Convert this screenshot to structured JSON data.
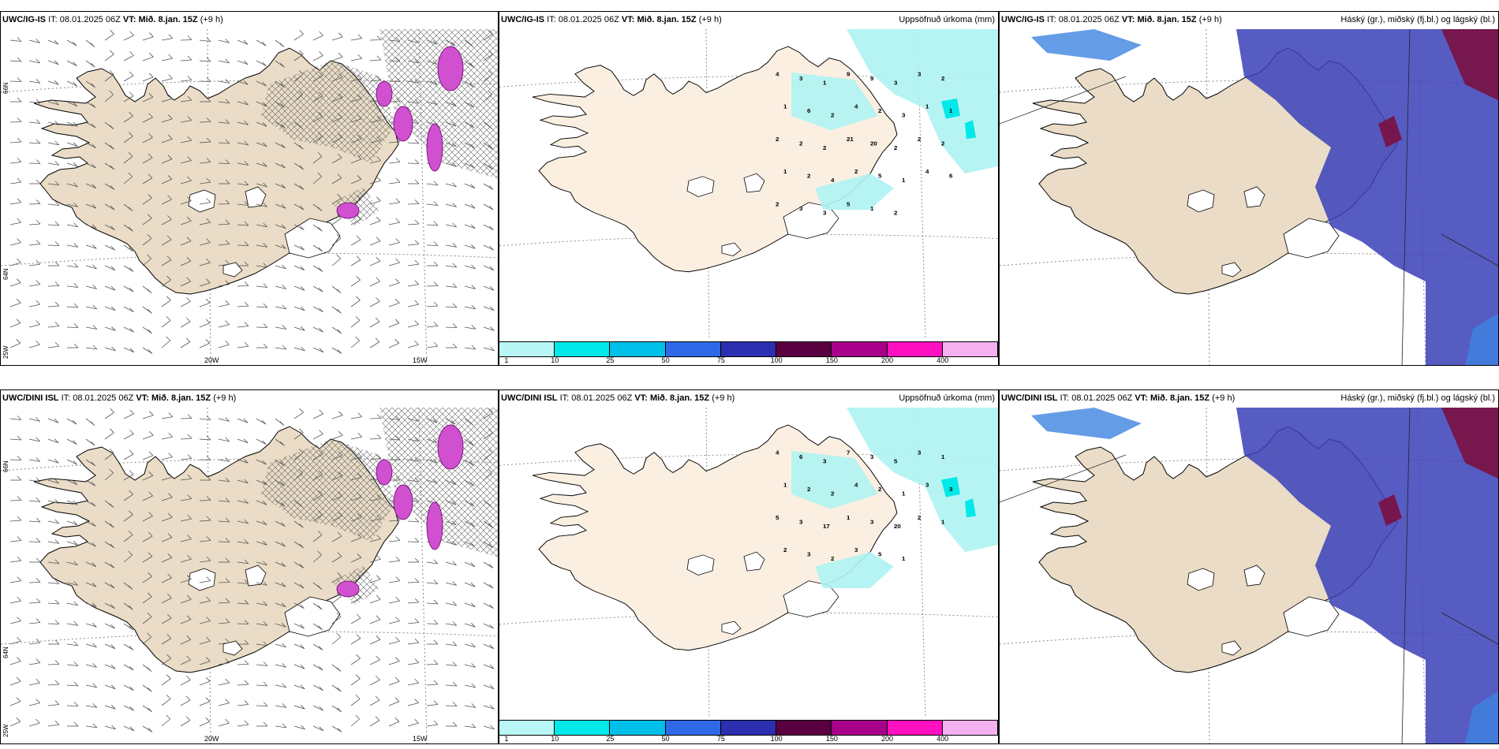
{
  "panels": [
    {
      "model": "UWC/IG-IS",
      "it_label": "IT:",
      "it_value": "08.01.2025 06Z",
      "vt_label": "VT:",
      "vt_value": "Mið. 8.jan. 15Z",
      "lead": "(+9 h)",
      "title_right": "",
      "kind": "wind",
      "lon_labels": [
        "20W",
        "15W"
      ],
      "lat_labels": [
        "66N",
        "64N",
        "25W"
      ]
    },
    {
      "model": "UWC/IG-IS",
      "it_label": "IT:",
      "it_value": "08.01.2025 06Z",
      "vt_label": "VT:",
      "vt_value": "Mið. 8.jan. 15Z",
      "lead": "(+9 h)",
      "title_right": "Uppsöfnuð úrkoma (mm)",
      "kind": "precip",
      "precip_values": [
        "4",
        "3",
        "1",
        "9",
        "9",
        "3",
        "3",
        "2",
        "1",
        "6",
        "2",
        "4",
        "2",
        "3",
        "1",
        "1",
        "2",
        "2",
        "2",
        "21",
        "20",
        "2",
        "2",
        "2",
        "1",
        "2",
        "4",
        "2",
        "5",
        "1",
        "4",
        "6",
        "2",
        "3",
        "3",
        "5",
        "1",
        "2"
      ]
    },
    {
      "model": "UWC/IG-IS",
      "it_label": "IT:",
      "it_value": "08.01.2025 06Z",
      "vt_label": "VT:",
      "vt_value": "Mið. 8.jan. 15Z",
      "lead": "(+9 h)",
      "title_right": "Háský (gr.), miðský (fj.bl.) og lágský (bl.)",
      "kind": "cloud"
    },
    {
      "model": "UWC/DINI ISL",
      "it_label": "IT:",
      "it_value": "08.01.2025 06Z",
      "vt_label": "VT:",
      "vt_value": "Mið. 8.jan. 15Z",
      "lead": "(+9 h)",
      "title_right": "",
      "kind": "wind",
      "lon_labels": [
        "20W",
        "15W"
      ],
      "lat_labels": [
        "66N",
        "64N",
        "25W"
      ]
    },
    {
      "model": "UWC/DINI ISL",
      "it_label": "IT:",
      "it_value": "08.01.2025 06Z",
      "vt_label": "VT:",
      "vt_value": "Mið. 8.jan. 15Z",
      "lead": "(+9 h)",
      "title_right": "Uppsöfnuð úrkoma (mm)",
      "kind": "precip",
      "precip_values": [
        "4",
        "6",
        "3",
        "7",
        "3",
        "5",
        "3",
        "1",
        "1",
        "2",
        "2",
        "4",
        "2",
        "1",
        "3",
        "3",
        "5",
        "3",
        "17",
        "1",
        "3",
        "20",
        "2",
        "1",
        "2",
        "3",
        "2",
        "3",
        "5",
        "1"
      ]
    },
    {
      "model": "UWC/DINI ISL",
      "it_label": "IT:",
      "it_value": "08.01.2025 06Z",
      "vt_label": "VT:",
      "vt_value": "Mið. 8.jan. 15Z",
      "lead": "(+9 h)",
      "title_right": "Háský (gr.), miðský (fj.bl.) og lágský (bl.)",
      "kind": "cloud"
    }
  ],
  "colorbar": {
    "colors": [
      "#b8f7f5",
      "#00e8e8",
      "#00bfe8",
      "#2f69e8",
      "#2b2fb0",
      "#5a0040",
      "#a8008a",
      "#ff10c0",
      "#f5b0f0"
    ],
    "labels": [
      "1",
      "10",
      "25",
      "50",
      "75",
      "100",
      "150",
      "200",
      "400"
    ]
  },
  "colors": {
    "land": "#eadcc6",
    "land_precip": "#fbefe2",
    "precip_light": "#aef3f3",
    "cloud_low": "#3a3fb8",
    "cloud_mid": "#3f83e0",
    "cloud_high": "#7a1040",
    "magenta": "#d050d0"
  }
}
